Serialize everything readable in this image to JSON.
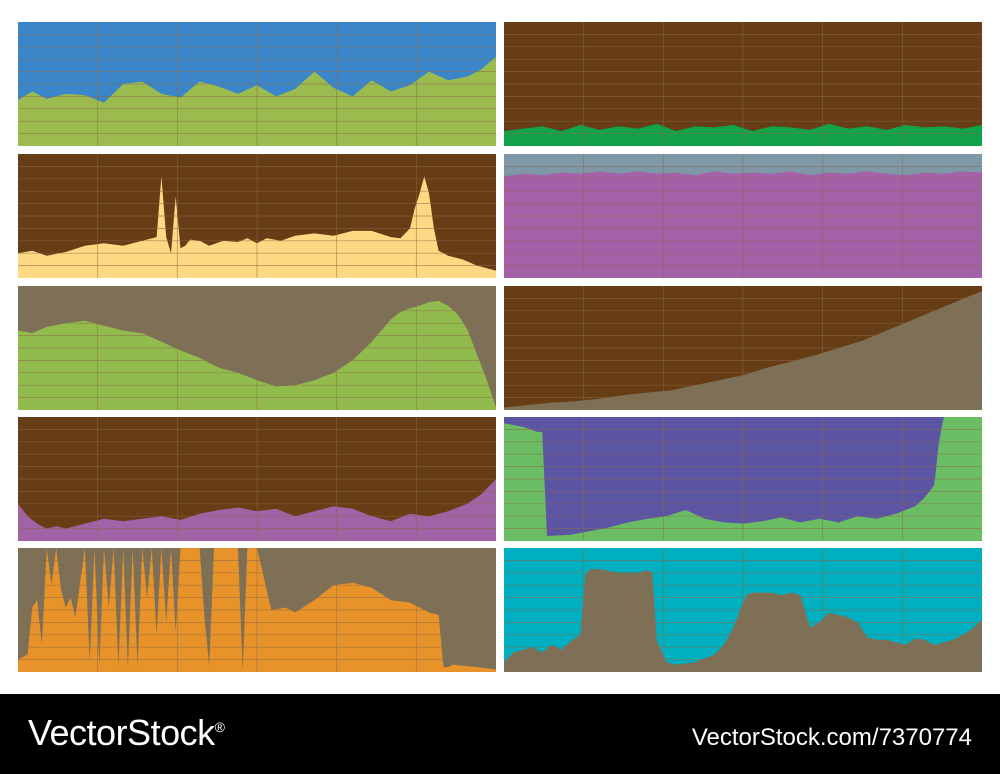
{
  "footer": {
    "brand": "VectorStock",
    "brand_mark": "®",
    "stock_id": "VectorStock.com/7370774"
  },
  "chart_data": [
    {
      "type": "area",
      "sky_color": "#3a86c8",
      "fill_color": "#9bbb4f",
      "grid_color": "#8b6a4a",
      "x": [
        0,
        3,
        6,
        10,
        14,
        18,
        22,
        26,
        30,
        34,
        38,
        42,
        46,
        50,
        54,
        58,
        62,
        66,
        70,
        74,
        78,
        82,
        86,
        90,
        94,
        97,
        100
      ],
      "y": [
        37,
        44,
        38,
        42,
        41,
        35,
        50,
        52,
        42,
        39,
        52,
        48,
        42,
        49,
        40,
        46,
        60,
        47,
        40,
        53,
        44,
        49,
        60,
        53,
        56,
        62,
        72
      ],
      "ylim": [
        0,
        100
      ]
    },
    {
      "type": "area",
      "sky_color": "#663d14",
      "fill_color": "#11a34a",
      "grid_color": "#8b6a4a",
      "x": [
        0,
        4,
        8,
        12,
        16,
        20,
        24,
        28,
        32,
        36,
        40,
        44,
        48,
        52,
        56,
        60,
        64,
        68,
        72,
        76,
        80,
        84,
        88,
        92,
        96,
        100
      ],
      "y": [
        12,
        14,
        16,
        12,
        17,
        13,
        16,
        14,
        18,
        12,
        16,
        15,
        17,
        12,
        16,
        15,
        13,
        18,
        14,
        16,
        13,
        17,
        15,
        16,
        14,
        17
      ],
      "ylim": [
        0,
        100
      ]
    },
    {
      "type": "area",
      "sky_color": "#663d14",
      "fill_color": "#fcd982",
      "grid_color": "#8b6a4a",
      "x": [
        0,
        3,
        6,
        10,
        14,
        18,
        22,
        26,
        29,
        30,
        31,
        32,
        33,
        34,
        35,
        36,
        38,
        40,
        43,
        46,
        48,
        50,
        52,
        55,
        58,
        62,
        66,
        70,
        74,
        78,
        80,
        82,
        83,
        84,
        85,
        86,
        87,
        88,
        90,
        93,
        96,
        100
      ],
      "y": [
        20,
        22,
        18,
        21,
        26,
        28,
        26,
        30,
        33,
        82,
        33,
        20,
        66,
        24,
        26,
        31,
        30,
        26,
        30,
        29,
        32,
        28,
        32,
        30,
        34,
        36,
        34,
        38,
        38,
        33,
        32,
        40,
        56,
        68,
        82,
        68,
        40,
        22,
        18,
        15,
        10,
        6
      ],
      "ylim": [
        0,
        100
      ]
    },
    {
      "type": "area",
      "sky_color": "#7e98a8",
      "fill_color": "#a461a7",
      "grid_color": "#8b6a4a",
      "x": [
        0,
        4,
        8,
        12,
        16,
        20,
        24,
        28,
        32,
        36,
        40,
        44,
        48,
        52,
        56,
        60,
        64,
        68,
        72,
        76,
        80,
        84,
        88,
        92,
        96,
        100
      ],
      "y": [
        82,
        84,
        83,
        85,
        84,
        86,
        84,
        86,
        84,
        85,
        83,
        86,
        84,
        85,
        84,
        86,
        83,
        85,
        84,
        86,
        84,
        83,
        85,
        84,
        86,
        85
      ],
      "ylim": [
        0,
        100
      ]
    },
    {
      "type": "area",
      "sky_color": "#7e7056",
      "fill_color": "#92bb4d",
      "grid_color": "#8b6a4a",
      "x": [
        0,
        3,
        6,
        10,
        14,
        18,
        22,
        26,
        30,
        34,
        38,
        42,
        46,
        50,
        54,
        58,
        62,
        66,
        70,
        74,
        78,
        80,
        82,
        84,
        86,
        88,
        90,
        92,
        94,
        96,
        98,
        100
      ],
      "y": [
        64,
        62,
        67,
        70,
        72,
        68,
        64,
        62,
        55,
        48,
        42,
        34,
        30,
        24,
        19,
        20,
        24,
        30,
        40,
        55,
        73,
        79,
        82,
        84,
        87,
        88,
        84,
        77,
        65,
        45,
        25,
        2
      ],
      "ylim": [
        0,
        100
      ]
    },
    {
      "type": "area",
      "sky_color": "#663d14",
      "fill_color": "#7e7056",
      "grid_color": "#8b6a4a",
      "x": [
        0,
        5,
        10,
        15,
        20,
        25,
        30,
        35,
        40,
        45,
        50,
        55,
        60,
        65,
        70,
        75,
        80,
        85,
        90,
        95,
        100
      ],
      "y": [
        2,
        4,
        6,
        7,
        9,
        12,
        14,
        16,
        20,
        24,
        28,
        34,
        39,
        44,
        50,
        56,
        64,
        72,
        80,
        88,
        96
      ],
      "ylim": [
        0,
        100
      ]
    },
    {
      "type": "area",
      "sky_color": "#663d14",
      "fill_color": "#a162a6",
      "grid_color": "#8b6a4a",
      "x": [
        0,
        2,
        4,
        6,
        8,
        10,
        14,
        18,
        22,
        26,
        30,
        34,
        38,
        42,
        46,
        50,
        54,
        58,
        62,
        66,
        70,
        74,
        78,
        82,
        86,
        90,
        94,
        97,
        100
      ],
      "y": [
        30,
        20,
        14,
        10,
        12,
        10,
        14,
        18,
        16,
        18,
        20,
        17,
        22,
        25,
        27,
        24,
        26,
        20,
        24,
        28,
        26,
        20,
        16,
        22,
        20,
        24,
        30,
        38,
        50
      ],
      "ylim": [
        0,
        100
      ]
    },
    {
      "type": "area",
      "sky_color": "#5b55a3",
      "fill_color": "#6bbd64",
      "grid_color": "#8b6a4a",
      "x": [
        0,
        4,
        7,
        8,
        9,
        14,
        18,
        22,
        26,
        30,
        34,
        38,
        42,
        46,
        50,
        54,
        58,
        62,
        66,
        70,
        74,
        78,
        82,
        86,
        88,
        90,
        91,
        92,
        100
      ],
      "y": [
        95,
        92,
        88,
        88,
        4,
        5,
        8,
        11,
        15,
        18,
        20,
        25,
        18,
        15,
        14,
        16,
        19,
        15,
        18,
        15,
        20,
        18,
        22,
        28,
        35,
        45,
        80,
        100,
        100
      ],
      "ylim": [
        0,
        100
      ]
    },
    {
      "type": "area",
      "sky_color": "#7e7056",
      "fill_color": "#e8922a",
      "grid_color": "#8b6a4a",
      "x": [
        0,
        2,
        3,
        4,
        5,
        6,
        7,
        8,
        9,
        10,
        11,
        12,
        14,
        15,
        16,
        17,
        18,
        19,
        20,
        21,
        22,
        23,
        24,
        25,
        26,
        27,
        28,
        29,
        30,
        31,
        32,
        33,
        34,
        36,
        37,
        38,
        39,
        40,
        41,
        42,
        45,
        46,
        47,
        48,
        50,
        53,
        56,
        58,
        62,
        66,
        70,
        74,
        78,
        82,
        86,
        88,
        89,
        90,
        91,
        93,
        96,
        100
      ],
      "y": [
        10,
        14,
        52,
        58,
        22,
        100,
        70,
        100,
        66,
        52,
        60,
        44,
        100,
        8,
        100,
        5,
        100,
        52,
        100,
        5,
        100,
        3,
        100,
        5,
        100,
        60,
        100,
        30,
        100,
        40,
        100,
        32,
        100,
        100,
        100,
        100,
        45,
        5,
        100,
        100,
        100,
        100,
        1,
        100,
        100,
        50,
        52,
        48,
        58,
        70,
        72,
        68,
        58,
        56,
        48,
        46,
        4,
        4,
        6,
        5,
        4,
        2
      ],
      "ylim": [
        0,
        100
      ]
    },
    {
      "type": "area",
      "sky_color": "#00b0c0",
      "fill_color": "#7e7056",
      "grid_color": "#8b6a4a",
      "x": [
        0,
        2,
        4,
        6,
        8,
        10,
        12,
        14,
        16,
        17,
        18,
        20,
        24,
        28,
        30,
        31,
        32,
        34,
        36,
        40,
        44,
        46,
        48,
        50,
        51,
        52,
        54,
        56,
        58,
        60,
        62,
        64,
        66,
        68,
        70,
        72,
        74,
        76,
        78,
        80,
        82,
        84,
        86,
        88,
        90,
        92,
        94,
        96,
        98,
        100
      ],
      "y": [
        8,
        16,
        18,
        20,
        16,
        22,
        18,
        25,
        30,
        78,
        83,
        83,
        80,
        80,
        82,
        80,
        25,
        8,
        6,
        8,
        14,
        22,
        36,
        56,
        63,
        64,
        64,
        64,
        62,
        64,
        62,
        36,
        40,
        48,
        46,
        44,
        40,
        28,
        26,
        26,
        24,
        22,
        27,
        26,
        22,
        24,
        26,
        30,
        35,
        42
      ],
      "ylim": [
        0,
        100
      ]
    }
  ]
}
